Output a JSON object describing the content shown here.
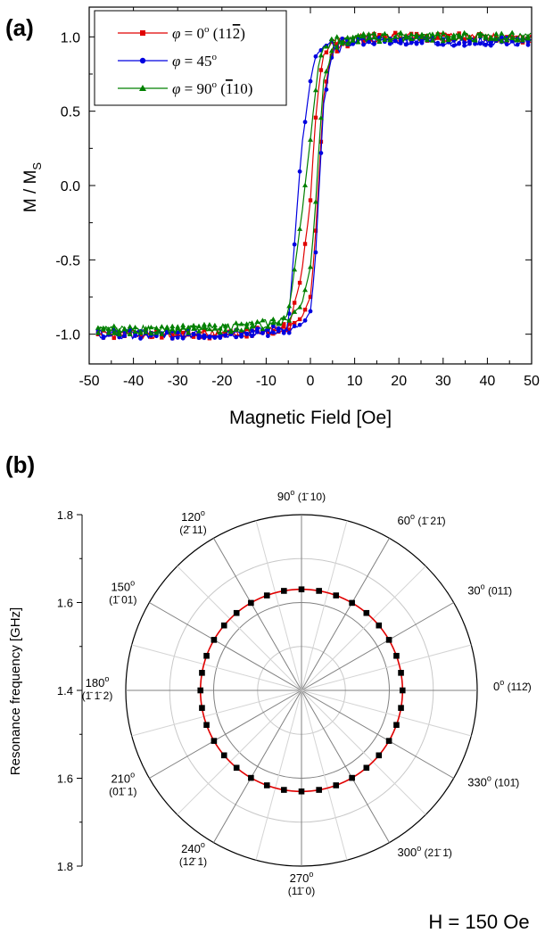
{
  "chart_data": [
    {
      "type": "line",
      "panel_label": "(a)",
      "xlabel": "Magnetic Field [Oe]",
      "ylabel": "M / M",
      "ylabel_sub": "S",
      "xlim": [
        -50,
        50
      ],
      "ylim": [
        -1.2,
        1.2
      ],
      "xticks": [
        "-50",
        "-40",
        "-30",
        "-20",
        "-10",
        "0",
        "10",
        "20",
        "30",
        "40",
        "50"
      ],
      "yticks": [
        "1.0",
        "0.5",
        "0.0",
        "-0.5",
        "-1.0"
      ],
      "grid": false,
      "legend_placement": "top-left",
      "series": [
        {
          "name": "φ = 0° (112̄)",
          "legend": {
            "phi": "φ",
            "rest": " = 0",
            "deg": "o",
            "dir": "(11",
            "bar": "2",
            "close": ")"
          },
          "color": "#e00000",
          "marker": "square",
          "x": [
            -50,
            -40,
            -30,
            -20,
            -10,
            -5,
            -2,
            0,
            1,
            2,
            3,
            5,
            10,
            20,
            30,
            40,
            50
          ],
          "y_increasing": [
            -1.0,
            -1.0,
            -1.0,
            -1.0,
            -0.98,
            -0.96,
            -0.9,
            -0.75,
            -0.4,
            0.1,
            0.6,
            0.92,
            0.98,
            1.0,
            1.0,
            1.0,
            0.99
          ],
          "y_decreasing": [
            -1.0,
            -1.0,
            -1.0,
            -1.0,
            -0.98,
            -0.95,
            -0.6,
            -0.1,
            0.4,
            0.7,
            0.88,
            0.95,
            0.99,
            1.0,
            1.0,
            1.0,
            0.99
          ]
        },
        {
          "name": "φ = 45°",
          "legend": {
            "phi": "φ",
            "rest": " = 45",
            "deg": "o",
            "dir": "",
            "bar": "",
            "close": ""
          },
          "color": "#0000e0",
          "marker": "circle",
          "x": [
            -50,
            -40,
            -30,
            -20,
            -10,
            -5,
            -2,
            0,
            1,
            2,
            3,
            5,
            10,
            20,
            30,
            40,
            50
          ],
          "y_increasing": [
            -1.0,
            -1.0,
            -1.0,
            -1.0,
            -0.99,
            -0.97,
            -0.93,
            -0.85,
            -0.55,
            0.0,
            0.55,
            0.9,
            0.97,
            0.98,
            0.97,
            0.97,
            0.97
          ],
          "y_decreasing": [
            -1.0,
            -1.0,
            -1.0,
            -1.0,
            -0.98,
            -0.95,
            0.25,
            0.7,
            0.85,
            0.9,
            0.93,
            0.95,
            0.97,
            0.98,
            0.97,
            0.97,
            0.97
          ]
        },
        {
          "name": "φ = 90° (1̄ 10)",
          "legend": {
            "phi": "φ",
            "rest": " = 90",
            "deg": "o",
            "dir": "(",
            "bar": "1",
            "close": "10)"
          },
          "color": "#008000",
          "marker": "triangle",
          "x": [
            -50,
            -40,
            -30,
            -20,
            -10,
            -5,
            -2,
            0,
            1,
            2,
            3,
            5,
            10,
            20,
            30,
            40,
            50
          ],
          "y_increasing": [
            -0.98,
            -0.97,
            -0.97,
            -0.96,
            -0.94,
            -0.9,
            -0.8,
            -0.55,
            -0.2,
            0.3,
            0.7,
            0.93,
            0.99,
            1.0,
            1.0,
            1.0,
            1.0
          ],
          "y_decreasing": [
            -0.98,
            -0.97,
            -0.97,
            -0.96,
            -0.93,
            -0.88,
            -0.2,
            0.3,
            0.6,
            0.85,
            0.93,
            0.97,
            0.99,
            1.0,
            1.0,
            1.0,
            1.0
          ]
        }
      ]
    },
    {
      "type": "polar",
      "panel_label": "(b)",
      "ylabel": "Resonance frequency [GHz]",
      "radial_range": [
        1.4,
        1.8
      ],
      "radial_ticks": [
        "1.8",
        "1.6",
        "1.4",
        "1.6",
        "1.8"
      ],
      "angle_labels": [
        {
          "angle": 0,
          "deg": "0",
          "dir": "(112̄)"
        },
        {
          "angle": 30,
          "deg": "30",
          "dir": "(011̄)"
        },
        {
          "angle": 60,
          "deg": "60",
          "dir": "(1̄ 21̄)"
        },
        {
          "angle": 90,
          "deg": "90",
          "dir": "(1̄ 10)"
        },
        {
          "angle": 120,
          "deg": "120",
          "dir": "(2̄ 11)"
        },
        {
          "angle": 150,
          "deg": "150",
          "dir": "(1̄ 01)"
        },
        {
          "angle": 180,
          "deg": "180",
          "dir": "(1̄ 1̄ 2)"
        },
        {
          "angle": 210,
          "deg": "210",
          "dir": "(01̄ 1)"
        },
        {
          "angle": 240,
          "deg": "240",
          "dir": "(12̄ 1)"
        },
        {
          "angle": 270,
          "deg": "270",
          "dir": "(11̄ 0)"
        },
        {
          "angle": 300,
          "deg": "300",
          "dir": "(21̄ 1̄)"
        },
        {
          "angle": 330,
          "deg": "330",
          "dir": "(101̄)"
        }
      ],
      "series": [
        {
          "marker": "square",
          "color": "#000000",
          "fit_color": "#e00000",
          "angles": [
            0,
            10,
            20,
            30,
            40,
            50,
            60,
            70,
            80,
            90,
            100,
            110,
            120,
            130,
            140,
            150,
            160,
            170,
            180,
            190,
            200,
            210,
            220,
            230,
            240,
            250,
            260,
            270,
            280,
            290,
            300,
            310,
            320,
            330,
            340,
            350
          ],
          "values": [
            1.63,
            1.63,
            1.63,
            1.63,
            1.63,
            1.63,
            1.63,
            1.63,
            1.63,
            1.63,
            1.63,
            1.63,
            1.63,
            1.63,
            1.63,
            1.63,
            1.63,
            1.63,
            1.63,
            1.63,
            1.63,
            1.63,
            1.63,
            1.63,
            1.63,
            1.63,
            1.63,
            1.63,
            1.63,
            1.63,
            1.63,
            1.63,
            1.63,
            1.63,
            1.63,
            1.63
          ],
          "fit_value": 1.63
        }
      ],
      "annotation": "H = 150 Oe"
    }
  ]
}
